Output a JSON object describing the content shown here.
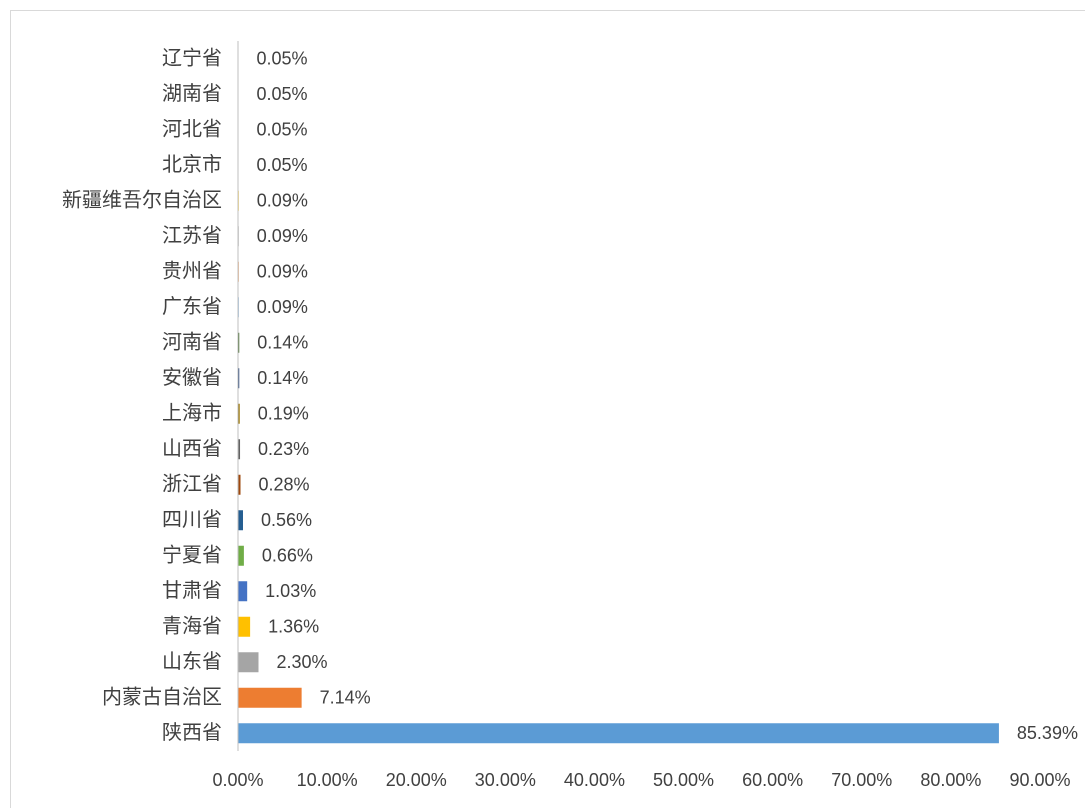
{
  "chart_data": {
    "type": "hbar",
    "categories": [
      "辽宁省",
      "湖南省",
      "河北省",
      "北京市",
      "新疆维吾尔自治区",
      "江苏省",
      "贵州省",
      "广东省",
      "河南省",
      "安徽省",
      "上海市",
      "山西省",
      "浙江省",
      "四川省",
      "宁夏省",
      "甘肃省",
      "青海省",
      "山东省",
      "内蒙古自治区",
      "陕西省"
    ],
    "values": [
      0.05,
      0.05,
      0.05,
      0.05,
      0.09,
      0.09,
      0.09,
      0.09,
      0.14,
      0.14,
      0.19,
      0.23,
      0.28,
      0.56,
      0.66,
      1.03,
      1.36,
      2.3,
      7.14,
      85.39
    ],
    "value_labels": [
      "0.05%",
      "0.05%",
      "0.05%",
      "0.05%",
      "0.09%",
      "0.09%",
      "0.09%",
      "0.09%",
      "0.14%",
      "0.14%",
      "0.19%",
      "0.23%",
      "0.28%",
      "0.56%",
      "0.66%",
      "1.03%",
      "1.36%",
      "2.30%",
      "7.14%",
      "85.39%"
    ],
    "colors": [
      "#d26012",
      "#327dc2",
      "#8cc168",
      "#698ed0",
      "#ffcd33",
      "#b7b7b7",
      "#f1975a",
      "#7cafdd",
      "#43682b",
      "#264478",
      "#997300",
      "#636363",
      "#9e480e",
      "#255e91",
      "#70ad47",
      "#4472c4",
      "#ffc000",
      "#a5a5a5",
      "#ed7d31",
      "#5b9bd5"
    ],
    "xlim": [
      0,
      90
    ],
    "xticks": [
      {
        "value": 0,
        "label": "0.00%"
      },
      {
        "value": 10,
        "label": "10.00%"
      },
      {
        "value": 20,
        "label": "20.00%"
      },
      {
        "value": 30,
        "label": "30.00%"
      },
      {
        "value": 40,
        "label": "40.00%"
      },
      {
        "value": 50,
        "label": "50.00%"
      },
      {
        "value": 60,
        "label": "60.00%"
      },
      {
        "value": 70,
        "label": "70.00%"
      },
      {
        "value": 80,
        "label": "80.00%"
      },
      {
        "value": 90,
        "label": "90.00%"
      }
    ],
    "grid": false
  }
}
